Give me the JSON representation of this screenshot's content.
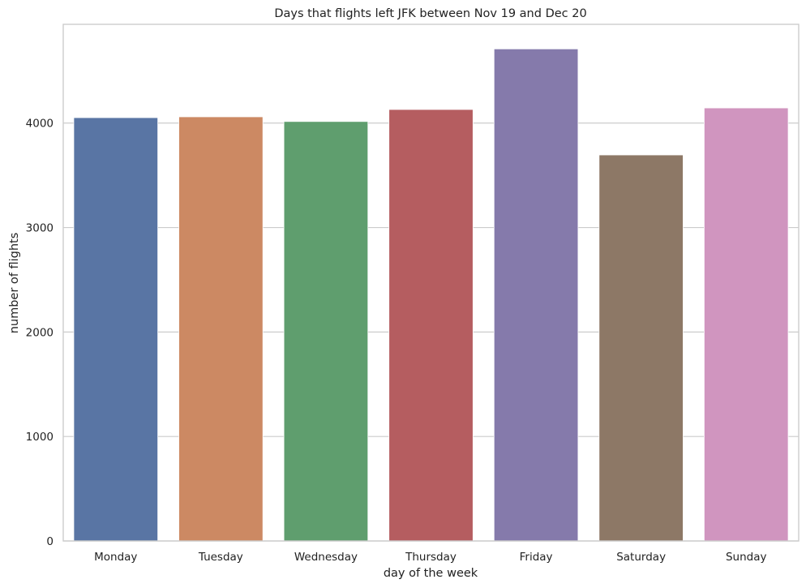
{
  "chart_data": {
    "type": "bar",
    "title": "Days that flights left JFK between Nov 19 and Dec 20",
    "xlabel": "day of the week",
    "ylabel": "number of flights",
    "categories": [
      "Monday",
      "Tuesday",
      "Wednesday",
      "Thursday",
      "Friday",
      "Saturday",
      "Sunday"
    ],
    "values": [
      4052,
      4060,
      4015,
      4130,
      4710,
      3695,
      4145
    ],
    "colors": [
      "#5975a4",
      "#cc8963",
      "#5f9e6e",
      "#b55d60",
      "#857aab",
      "#8d7866",
      "#d095bf"
    ],
    "yticks": [
      0,
      1000,
      2000,
      3000,
      4000
    ],
    "ylim": [
      0,
      4945
    ],
    "grid": true,
    "style": "seaborn-whitegrid"
  }
}
